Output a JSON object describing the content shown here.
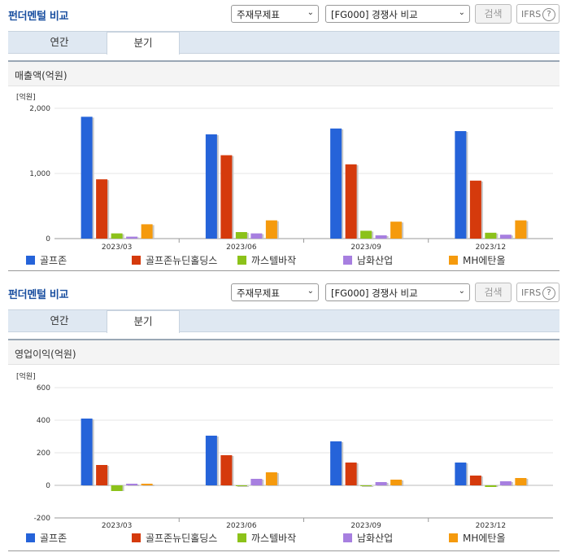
{
  "panels": [
    {
      "title": "펀더멘털 비교",
      "select1": "주재무제표",
      "select2": "[FG000] 경쟁사 비교",
      "search_label": "검색",
      "ifrs_label": "IFRS",
      "ifrs_help": "?",
      "tabs": [
        {
          "label": "연간",
          "active": false
        },
        {
          "label": "분기",
          "active": true
        }
      ],
      "section_title": "매출액(억원)"
    },
    {
      "title": "펀더멘털 비교",
      "select1": "주재무제표",
      "select2": "[FG000] 경쟁사 비교",
      "search_label": "검색",
      "ifrs_label": "IFRS",
      "ifrs_help": "?",
      "tabs": [
        {
          "label": "연간",
          "active": false
        },
        {
          "label": "분기",
          "active": true
        }
      ],
      "section_title": "영업이익(억원)"
    }
  ],
  "colors": {
    "골프존": "#2563d9",
    "골프존뉴딘홀딩스": "#d53a0c",
    "까스텔바작": "#8cc21a",
    "남화산업": "#a77fe0",
    "MH에탄올": "#f59a0d"
  },
  "chart_data": [
    {
      "type": "bar",
      "title": "매출액(억원)",
      "unit_label": "[억원]",
      "categories": [
        "2023/03",
        "2023/06",
        "2023/09",
        "2023/12"
      ],
      "ylim": [
        0,
        2000
      ],
      "yticks": [
        0,
        1000,
        2000
      ],
      "ytick_labels": [
        "0",
        "1,000",
        "2,000"
      ],
      "grid": true,
      "legend_position": "bottom",
      "series": [
        {
          "name": "골프존",
          "values": [
            1870,
            1600,
            1690,
            1650
          ]
        },
        {
          "name": "골프존뉴딘홀딩스",
          "values": [
            910,
            1280,
            1140,
            890
          ]
        },
        {
          "name": "까스텔바작",
          "values": [
            80,
            100,
            120,
            90
          ]
        },
        {
          "name": "남화산업",
          "values": [
            30,
            80,
            50,
            60
          ]
        },
        {
          "name": "MH에탄올",
          "values": [
            220,
            280,
            260,
            280
          ]
        }
      ]
    },
    {
      "type": "bar",
      "title": "영업이익(억원)",
      "unit_label": "[억원]",
      "categories": [
        "2023/03",
        "2023/06",
        "2023/09",
        "2023/12"
      ],
      "ylim": [
        -200,
        600
      ],
      "yticks": [
        -200,
        0,
        200,
        400,
        600
      ],
      "ytick_labels": [
        "-200",
        "0",
        "200",
        "400",
        "600"
      ],
      "grid": true,
      "legend_position": "bottom",
      "series": [
        {
          "name": "골프존",
          "values": [
            410,
            305,
            270,
            140
          ]
        },
        {
          "name": "골프존뉴딘홀딩스",
          "values": [
            125,
            185,
            140,
            60
          ]
        },
        {
          "name": "까스텔바작",
          "values": [
            -35,
            0,
            0,
            -10
          ]
        },
        {
          "name": "남화산업",
          "values": [
            10,
            40,
            20,
            25
          ]
        },
        {
          "name": "MH에탄올",
          "values": [
            10,
            80,
            35,
            45
          ]
        }
      ]
    }
  ]
}
